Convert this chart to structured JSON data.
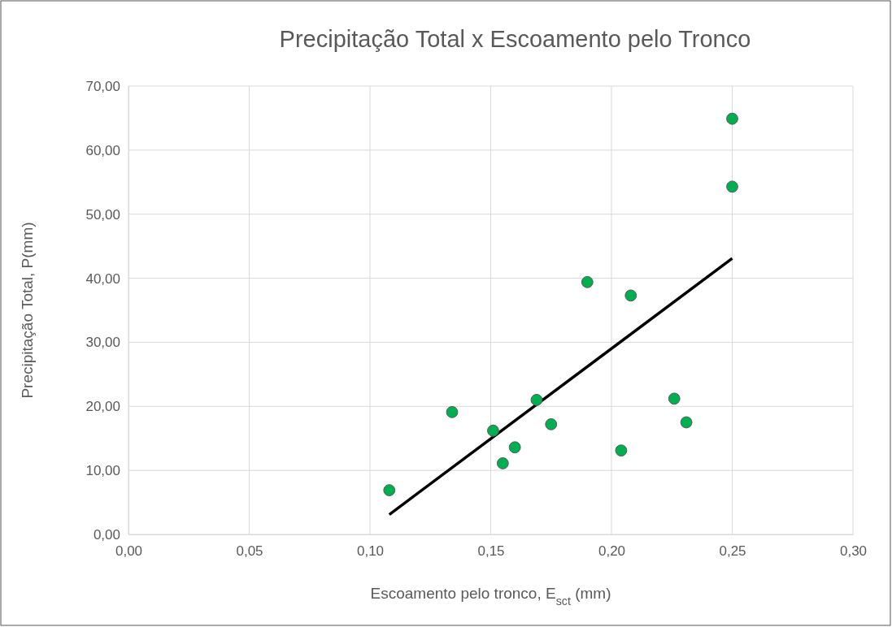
{
  "chart_data": {
    "type": "scatter",
    "title": "Precipitação Total x Escoamento pelo Tronco",
    "xlabel": "Escoamento pelo tronco, E$_{sct}$ (mm)",
    "ylabel": "Precipitação Total, P(mm)",
    "xlim": [
      0,
      0.3
    ],
    "ylim": [
      0,
      70
    ],
    "xticks": [
      {
        "value": 0,
        "label": "0,00"
      },
      {
        "value": 0.05,
        "label": "0,05"
      },
      {
        "value": 0.1,
        "label": "0,10"
      },
      {
        "value": 0.15,
        "label": "0,15"
      },
      {
        "value": 0.2,
        "label": "0,20"
      },
      {
        "value": 0.25,
        "label": "0,25"
      },
      {
        "value": 0.3,
        "label": "0,30"
      }
    ],
    "yticks": [
      {
        "value": 0,
        "label": "0,00"
      },
      {
        "value": 10,
        "label": "10,00"
      },
      {
        "value": 20,
        "label": "20,00"
      },
      {
        "value": 30,
        "label": "30,00"
      },
      {
        "value": 40,
        "label": "40,00"
      },
      {
        "value": 50,
        "label": "50,00"
      },
      {
        "value": 60,
        "label": "60,00"
      },
      {
        "value": 70,
        "label": "70,00"
      }
    ],
    "grid": true,
    "series": [
      {
        "marker": "circle",
        "color": "#00b050",
        "x": [
          0.108,
          0.134,
          0.151,
          0.155,
          0.16,
          0.169,
          0.175,
          0.19,
          0.204,
          0.208,
          0.226,
          0.231,
          0.25,
          0.25
        ],
        "values": [
          6.9,
          19.1,
          16.2,
          11.1,
          13.6,
          21.0,
          17.2,
          39.4,
          13.1,
          37.3,
          21.2,
          17.5,
          54.3,
          64.9
        ]
      },
      {
        "type": "line",
        "color": "#000000",
        "line_style": "solid",
        "x": [
          0.108,
          0.25
        ],
        "values": [
          3.1,
          43.1
        ]
      }
    ]
  }
}
